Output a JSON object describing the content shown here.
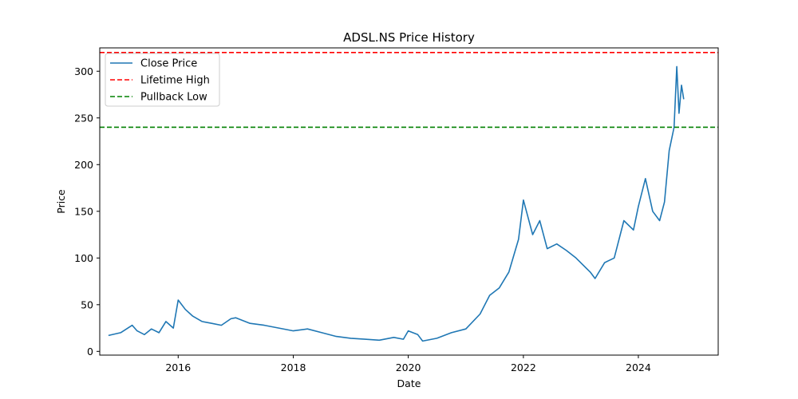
{
  "chart_data": {
    "type": "line",
    "title": "ADSL.NS Price History",
    "xlabel": "Date",
    "ylabel": "Price",
    "xlim": [
      "2014-08-21",
      "2025-05-22"
    ],
    "ylim": [
      -4,
      325
    ],
    "xticks": [
      "2016-01-01",
      "2018-01-01",
      "2020-01-01",
      "2022-01-01",
      "2024-01-01"
    ],
    "xtick_labels": [
      "2016",
      "2018",
      "2020",
      "2022",
      "2024"
    ],
    "yticks": [
      0,
      50,
      100,
      150,
      200,
      250,
      300
    ],
    "grid": false,
    "legend_position": "top-left",
    "series": [
      {
        "name": "Close Price",
        "color": "#1f77b4",
        "style": "solid",
        "x": [
          "2014-10-15",
          "2015-01-01",
          "2015-03-15",
          "2015-04-15",
          "2015-06-01",
          "2015-07-15",
          "2015-09-01",
          "2015-10-15",
          "2015-12-01",
          "2016-01-01",
          "2016-02-15",
          "2016-04-01",
          "2016-06-01",
          "2016-08-01",
          "2016-10-01",
          "2016-12-01",
          "2017-01-01",
          "2017-04-01",
          "2017-07-01",
          "2017-10-01",
          "2018-01-01",
          "2018-04-01",
          "2018-07-01",
          "2018-10-01",
          "2019-01-01",
          "2019-04-01",
          "2019-07-01",
          "2019-10-01",
          "2019-12-01",
          "2020-01-01",
          "2020-03-01",
          "2020-04-01",
          "2020-07-01",
          "2020-10-01",
          "2021-01-01",
          "2021-04-01",
          "2021-06-01",
          "2021-08-01",
          "2021-10-01",
          "2021-12-01",
          "2022-01-01",
          "2022-03-01",
          "2022-04-15",
          "2022-06-01",
          "2022-08-01",
          "2022-10-01",
          "2022-12-01",
          "2023-03-01",
          "2023-04-01",
          "2023-06-01",
          "2023-08-01",
          "2023-10-01",
          "2023-12-01",
          "2024-01-01",
          "2024-02-15",
          "2024-04-01",
          "2024-05-15",
          "2024-06-15",
          "2024-07-15",
          "2024-08-15",
          "2024-09-01",
          "2024-09-15",
          "2024-10-01",
          "2024-10-15"
        ],
        "y": [
          17,
          20,
          28,
          22,
          18,
          24,
          20,
          32,
          25,
          55,
          45,
          38,
          32,
          30,
          28,
          35,
          36,
          30,
          28,
          25,
          22,
          24,
          20,
          16,
          14,
          13,
          12,
          15,
          13,
          22,
          18,
          11,
          14,
          20,
          24,
          40,
          60,
          68,
          85,
          120,
          162,
          125,
          140,
          110,
          115,
          108,
          100,
          85,
          78,
          95,
          100,
          140,
          130,
          155,
          185,
          150,
          140,
          160,
          215,
          240,
          305,
          255,
          285,
          270
        ]
      },
      {
        "name": "Lifetime High",
        "color": "#ff0000",
        "style": "dashed",
        "y_constant": 320
      },
      {
        "name": "Pullback Low",
        "color": "#008000",
        "style": "dashed",
        "y_constant": 240
      }
    ]
  }
}
